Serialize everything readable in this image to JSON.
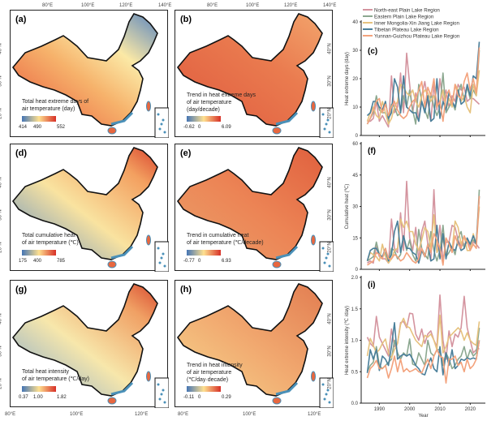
{
  "maps": [
    {
      "id": "a",
      "label": "(a)",
      "legend": [
        "Total heat extreme days of",
        "air temperature (day)"
      ],
      "ticks": [
        "414",
        "490",
        "552"
      ],
      "colors": [
        "#4575b4",
        "#fee090",
        "#d73027"
      ],
      "fill": "a"
    },
    {
      "id": "b",
      "label": "(b)",
      "legend": [
        "Trend in heat extreme days",
        "of air temperature",
        "(day/decade)"
      ],
      "ticks": [
        "-0.62",
        "0",
        "6.09"
      ],
      "colors": [
        "#4575b4",
        "#fee090",
        "#d73027"
      ],
      "fill": "b"
    },
    {
      "id": "d",
      "label": "(d)",
      "legend": [
        "Total cumulative heat",
        "of air temperature (℃)"
      ],
      "ticks": [
        "175",
        "400",
        "785"
      ],
      "colors": [
        "#4575b4",
        "#fee090",
        "#d73027"
      ],
      "fill": "d"
    },
    {
      "id": "e",
      "label": "(e)",
      "legend": [
        "Trend in cumulative heat",
        "of air temperature (℃/decade)"
      ],
      "ticks": [
        "-0.77",
        "0",
        "6.93"
      ],
      "colors": [
        "#4575b4",
        "#fee090",
        "#d73027"
      ],
      "fill": "e"
    },
    {
      "id": "g",
      "label": "(g)",
      "legend": [
        "Total heat intensity",
        "of air temperature (℃/day)"
      ],
      "ticks": [
        "0.37",
        "1.00",
        "1.82"
      ],
      "colors": [
        "#4575b4",
        "#fee090",
        "#d73027"
      ],
      "fill": "g"
    },
    {
      "id": "h",
      "label": "(h)",
      "legend": [
        "Trend in heat intensity",
        "of air temperature",
        "(℃/day·decade)"
      ],
      "ticks": [
        "-0.11",
        "0",
        "0.29"
      ],
      "colors": [
        "#4575b4",
        "#fee090",
        "#d73027"
      ],
      "fill": "h"
    }
  ],
  "map_axes": {
    "top_lon": [
      "80°E",
      "100°E",
      "120°E",
      "140°E"
    ],
    "bottom_lon": [
      "80°E",
      "100°E",
      "120°E"
    ],
    "lat": [
      "40°N",
      "30°N",
      "20°N"
    ]
  },
  "chart_data": [
    {
      "type": "line",
      "label": "(c)",
      "ylabel": "Heat extreme days (day)",
      "xlabel": "",
      "ylim": [
        0,
        40
      ],
      "yticks": [
        "0",
        "10",
        "20",
        "30",
        "40"
      ],
      "xlim": [
        1984,
        2025
      ],
      "xticks": [
        "1990",
        "2000",
        "2010",
        "2020"
      ],
      "x_start": 1986,
      "legend": [
        "North-east Plain Lake Region",
        "Eastern Plain Lake Region",
        "Inner Mongolia-Xin Jiang Lake Region",
        "Tibetan Plateau Lake Region",
        "Yunnan-Guizhou Plateau Lake Region"
      ],
      "colors": [
        "#d4949f",
        "#8ca890",
        "#e6c27e",
        "#4a7f9a",
        "#f3a27c"
      ],
      "series": [
        {
          "name": "North-east Plain Lake Region",
          "values": [
            5,
            5,
            6,
            12,
            5,
            7,
            5,
            3,
            21,
            8,
            10,
            22,
            8,
            29,
            18,
            8,
            15,
            5,
            14,
            19,
            12,
            5,
            18,
            9,
            20,
            12,
            16,
            10,
            14,
            12,
            18,
            16,
            17,
            12,
            13,
            13,
            12,
            11
          ]
        },
        {
          "name": "Eastern Plain Lake Region",
          "values": [
            4,
            6,
            8,
            14,
            9,
            8,
            8,
            5,
            11,
            10,
            7,
            8,
            14,
            10,
            16,
            9,
            4,
            18,
            12,
            9,
            6,
            15,
            10,
            7,
            10,
            22,
            8,
            10,
            12,
            9,
            15,
            18,
            12,
            17,
            13,
            16,
            14,
            30
          ]
        },
        {
          "name": "Inner Mongolia-Xin Jiang Lake Region",
          "values": [
            5,
            8,
            10,
            7,
            6,
            12,
            8,
            4,
            6,
            10,
            12,
            18,
            17,
            15,
            14,
            16,
            12,
            10,
            14,
            16,
            15,
            12,
            14,
            10,
            12,
            16,
            9,
            13,
            10,
            18,
            16,
            12,
            14,
            10,
            8,
            18,
            14,
            23
          ]
        },
        {
          "name": "Tibetan Plateau Lake Region",
          "values": [
            7,
            8,
            12,
            12,
            10,
            9,
            12,
            6,
            8,
            20,
            17,
            8,
            21,
            10,
            9,
            8,
            8,
            5,
            12,
            8,
            14,
            5,
            6,
            20,
            6,
            12,
            9,
            15,
            12,
            10,
            16,
            11,
            12,
            18,
            14,
            21,
            20,
            33
          ]
        },
        {
          "name": "Yunnan-Guizhou Plateau Lake Region",
          "values": [
            4,
            6,
            9,
            12,
            13,
            8,
            11,
            7,
            10,
            12,
            9,
            7,
            6,
            7,
            10,
            12,
            13,
            16,
            19,
            10,
            17,
            14,
            20,
            10,
            12,
            5,
            14,
            16,
            11,
            18,
            14,
            13,
            19,
            22,
            16,
            20,
            15,
            31
          ]
        }
      ]
    },
    {
      "type": "line",
      "label": "(f)",
      "ylabel": "Cumulative heat (℃)",
      "xlabel": "",
      "ylim": [
        0,
        60
      ],
      "yticks": [
        "0",
        "15",
        "30",
        "45",
        "60"
      ],
      "xlim": [
        1984,
        2025
      ],
      "xticks": [
        "1990",
        "2000",
        "2010",
        "2020"
      ],
      "x_start": 1986,
      "colors": [
        "#d4949f",
        "#8ca890",
        "#e6c27e",
        "#4a7f9a",
        "#f3a27c"
      ],
      "series": [
        {
          "name": "North-east Plain Lake Region",
          "values": [
            3,
            4,
            3,
            11,
            6,
            5,
            5,
            3,
            24,
            10,
            8,
            27,
            9,
            42,
            15,
            9,
            20,
            4,
            18,
            23,
            12,
            4,
            38,
            8,
            21,
            4,
            13,
            13,
            21,
            20,
            14,
            11,
            12,
            13,
            11,
            13,
            12,
            10
          ]
        },
        {
          "name": "Eastern Plain Lake Region",
          "values": [
            4,
            5,
            6,
            13,
            7,
            6,
            8,
            4,
            10,
            9,
            5,
            7,
            16,
            9,
            14,
            7,
            4,
            19,
            10,
            7,
            5,
            18,
            9,
            4,
            9,
            21,
            6,
            8,
            11,
            7,
            15,
            18,
            10,
            14,
            12,
            14,
            12,
            38
          ]
        },
        {
          "name": "Inner Mongolia-Xin Jiang Lake Region",
          "values": [
            4,
            8,
            7,
            6,
            4,
            12,
            6,
            3,
            5,
            9,
            10,
            24,
            20,
            23,
            18,
            18,
            12,
            9,
            14,
            20,
            18,
            10,
            26,
            8,
            11,
            14,
            7,
            12,
            9,
            23,
            20,
            12,
            16,
            9,
            9,
            17,
            12,
            30
          ]
        },
        {
          "name": "Tibetan Plateau Lake Region",
          "values": [
            4,
            9,
            10,
            10,
            7,
            6,
            10,
            4,
            7,
            18,
            23,
            8,
            16,
            10,
            10,
            8,
            7,
            3,
            9,
            6,
            12,
            4,
            5,
            21,
            5,
            17,
            5,
            13,
            10,
            9,
            13,
            9,
            10,
            15,
            12,
            16,
            12,
            35
          ]
        },
        {
          "name": "Yunnan-Guizhou Plateau Lake Region",
          "values": [
            2,
            3,
            4,
            8,
            7,
            5,
            10,
            5,
            5,
            7,
            6,
            4,
            5,
            8,
            6,
            4,
            3,
            5,
            10,
            6,
            12,
            8,
            17,
            14,
            10,
            2,
            15,
            12,
            8,
            16,
            12,
            10,
            16,
            13,
            9,
            12,
            10,
            35
          ]
        }
      ]
    },
    {
      "type": "line",
      "label": "(i)",
      "ylabel": "Heat extreme intensity (℃ /day)",
      "xlabel": "Year",
      "ylim": [
        0,
        2
      ],
      "yticks": [
        "0.0",
        "0.5",
        "1.0",
        "1.5",
        "2.0"
      ],
      "xlim": [
        1984,
        2025
      ],
      "xticks": [
        "1990",
        "2000",
        "2010",
        "2020"
      ],
      "x_start": 1986,
      "colors": [
        "#d4949f",
        "#8ca890",
        "#e6c27e",
        "#4a7f9a",
        "#f3a27c"
      ],
      "series": [
        {
          "name": "North-east Plain Lake Region",
          "values": [
            1.05,
            0.95,
            0.9,
            1.38,
            1.05,
            0.95,
            0.85,
            0.75,
            1.18,
            0.9,
            0.95,
            1.28,
            1.3,
            1.2,
            1.43,
            1.42,
            1.1,
            1.0,
            1.18,
            0.95,
            1.1,
            1.15,
            1.0,
            0.9,
            1.72,
            1.0,
            0.7,
            1.15,
            0.9,
            1.1,
            1.05,
            1.2,
            1.7,
            1.2,
            1.0,
            0.8,
            0.85,
            0.87
          ]
        },
        {
          "name": "Eastern Plain Lake Region",
          "values": [
            0.5,
            0.6,
            0.65,
            0.9,
            0.6,
            0.55,
            0.6,
            0.65,
            0.7,
            1.0,
            0.8,
            0.7,
            0.8,
            0.75,
            1.02,
            0.62,
            0.6,
            0.8,
            0.7,
            0.6,
            1.0,
            0.8,
            0.75,
            0.85,
            0.85,
            0.6,
            0.8,
            0.7,
            0.55,
            0.6,
            0.7,
            0.75,
            0.9,
            0.7,
            0.85,
            0.75,
            0.8,
            1.2
          ]
        },
        {
          "name": "Inner Mongolia-Xin Jiang Lake Region",
          "values": [
            0.75,
            1.03,
            0.92,
            0.8,
            0.85,
            0.95,
            1.02,
            0.8,
            0.72,
            0.85,
            0.95,
            1.25,
            1.35,
            1.22,
            1.2,
            1.1,
            1.0,
            0.95,
            0.9,
            1.08,
            1.05,
            1.1,
            1.0,
            0.85,
            1.4,
            0.8,
            0.9,
            1.05,
            1.1,
            1.15,
            1.2,
            1.15,
            1.0,
            1.12,
            1.0,
            0.95,
            0.92,
            1.3
          ]
        },
        {
          "name": "Tibetan Plateau Lake Region",
          "values": [
            0.48,
            0.85,
            0.7,
            0.85,
            0.52,
            0.75,
            0.7,
            0.6,
            0.9,
            1.28,
            0.7,
            0.75,
            0.78,
            0.75,
            0.78,
            0.7,
            0.6,
            0.55,
            0.47,
            0.45,
            0.6,
            0.72,
            0.55,
            0.5,
            0.9,
            0.45,
            0.8,
            0.6,
            0.85,
            0.55,
            0.6,
            0.7,
            0.68,
            0.72,
            0.7,
            0.72,
            0.7,
            1.0
          ]
        },
        {
          "name": "Yunnan-Guizhou Plateau Lake Region",
          "values": [
            0.4,
            0.55,
            0.6,
            0.68,
            0.55,
            0.55,
            0.6,
            0.4,
            0.55,
            0.75,
            0.5,
            0.7,
            0.5,
            0.55,
            0.5,
            0.52,
            0.55,
            0.5,
            0.48,
            0.6,
            0.7,
            0.55,
            0.75,
            0.85,
            0.75,
            0.72,
            0.32,
            0.7,
            0.7,
            0.75,
            0.6,
            0.65,
            0.5,
            0.7,
            0.55,
            0.6,
            0.7,
            1.0
          ]
        }
      ]
    }
  ]
}
